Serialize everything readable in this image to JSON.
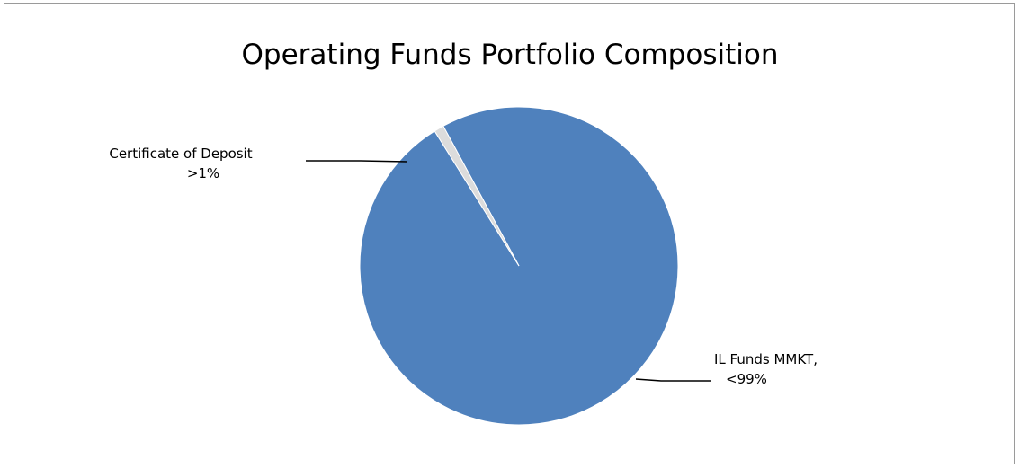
{
  "chart_data": {
    "type": "pie",
    "title": "Operating Funds Portfolio Composition",
    "slices": [
      {
        "label": "IL Funds MMKT,",
        "value_label": "<99%",
        "value": 99,
        "color": "#4f81bd"
      },
      {
        "label": "Certificate of Deposit",
        "value_label": ">1%",
        "value": 1,
        "color": "#dcdcdc"
      }
    ],
    "legend": "none"
  }
}
